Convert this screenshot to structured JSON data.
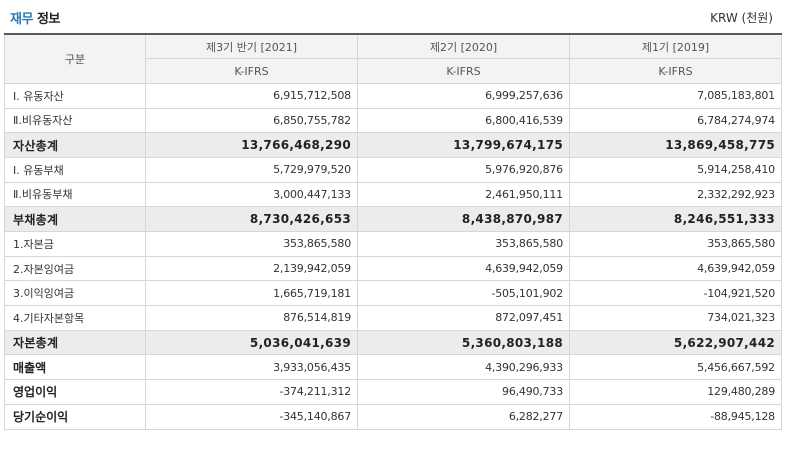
{
  "header": {
    "title_accent": "재무",
    "title_rest": " 정보",
    "unit": "KRW (천원)"
  },
  "table": {
    "category_header": "구분",
    "periods": [
      "제3기 반기 [2021]",
      "제2기 [2020]",
      "제1기 [2019]"
    ],
    "standards": [
      "K-IFRS",
      "K-IFRS",
      "K-IFRS"
    ],
    "rows": [
      {
        "label": "Ⅰ. 유동자산",
        "values": [
          "6,915,712,508",
          "6,999,257,636",
          "7,085,183,801"
        ],
        "style": "normal"
      },
      {
        "label": "Ⅱ.비유동자산",
        "values": [
          "6,850,755,782",
          "6,800,416,539",
          "6,784,274,974"
        ],
        "style": "normal"
      },
      {
        "label": "자산총계",
        "values": [
          "13,766,468,290",
          "13,799,674,175",
          "13,869,458,775"
        ],
        "style": "total"
      },
      {
        "label": "Ⅰ. 유동부채",
        "values": [
          "5,729,979,520",
          "5,976,920,876",
          "5,914,258,410"
        ],
        "style": "normal"
      },
      {
        "label": "Ⅱ.비유동부채",
        "values": [
          "3,000,447,133",
          "2,461,950,111",
          "2,332,292,923"
        ],
        "style": "normal"
      },
      {
        "label": "부채총계",
        "values": [
          "8,730,426,653",
          "8,438,870,987",
          "8,246,551,333"
        ],
        "style": "total"
      },
      {
        "label": "1.자본금",
        "values": [
          "353,865,580",
          "353,865,580",
          "353,865,580"
        ],
        "style": "normal"
      },
      {
        "label": "2.자본잉여금",
        "values": [
          "2,139,942,059",
          "4,639,942,059",
          "4,639,942,059"
        ],
        "style": "normal"
      },
      {
        "label": "3.이익잉여금",
        "values": [
          "1,665,719,181",
          "-505,101,902",
          "-104,921,520"
        ],
        "style": "normal"
      },
      {
        "label": "4.기타자본항목",
        "values": [
          "876,514,819",
          "872,097,451",
          "734,021,323"
        ],
        "style": "normal"
      },
      {
        "label": "자본총계",
        "values": [
          "5,036,041,639",
          "5,360,803,188",
          "5,622,907,442"
        ],
        "style": "total"
      },
      {
        "label": "매출액",
        "values": [
          "3,933,056,435",
          "4,390,296,933",
          "5,456,667,592"
        ],
        "style": "bold"
      },
      {
        "label": "영업이익",
        "values": [
          "-374,211,312",
          "96,490,733",
          "129,480,289"
        ],
        "style": "bold"
      },
      {
        "label": "당기순이익",
        "values": [
          "-345,140,867",
          "6,282,277",
          "-88,945,128"
        ],
        "style": "bold"
      }
    ]
  }
}
